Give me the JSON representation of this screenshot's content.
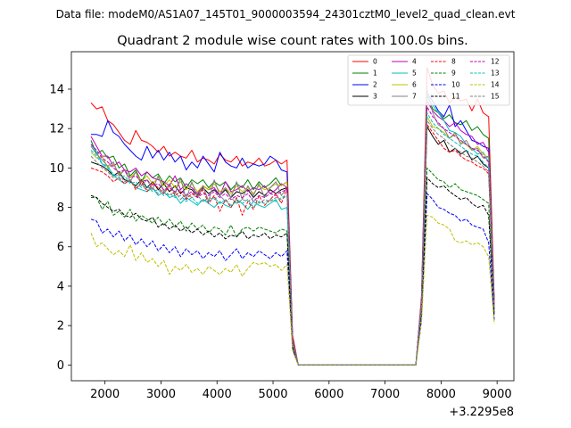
{
  "chart_data": {
    "type": "line",
    "suptitle": "Data file: modeM0/AS1A07_145T01_9000003594_24301cztM0_level2_quad_clean.evt",
    "title": "Quadrant 2 module wise count rates with 100.0s bins.",
    "xlabel": "",
    "ylabel": "",
    "x_offset_label": "+3.2295e8",
    "xlim": [
      1400,
      9300
    ],
    "ylim": [
      -0.8,
      15.9
    ],
    "x_ticks": [
      2000,
      3000,
      4000,
      5000,
      6000,
      7000,
      8000,
      9000
    ],
    "y_ticks": [
      0,
      2,
      4,
      6,
      8,
      10,
      12,
      14
    ],
    "x": [
      1750,
      1850,
      1950,
      2050,
      2150,
      2250,
      2350,
      2450,
      2550,
      2650,
      2750,
      2850,
      2950,
      3050,
      3150,
      3250,
      3350,
      3450,
      3550,
      3650,
      3750,
      3850,
      3950,
      4050,
      4150,
      4250,
      4350,
      4450,
      4550,
      4650,
      4750,
      4850,
      4950,
      5050,
      5150,
      5250,
      5350,
      5450,
      5550,
      7550,
      7650,
      7750,
      7850,
      7950,
      8050,
      8150,
      8250,
      8350,
      8450,
      8550,
      8650,
      8750,
      8850,
      8950
    ],
    "series": [
      {
        "name": "0",
        "color": "#ff0000",
        "dash": "solid",
        "values": [
          13.3,
          13.0,
          13.1,
          12.4,
          12.2,
          11.8,
          11.4,
          11.2,
          11.9,
          11.4,
          11.3,
          11.1,
          10.8,
          11.1,
          10.6,
          10.8,
          10.6,
          10.5,
          10.9,
          10.3,
          10.5,
          10.4,
          10.2,
          10.7,
          10.4,
          10.3,
          10.6,
          10.1,
          10.3,
          10.2,
          10.5,
          10.1,
          10.2,
          10.4,
          10.2,
          10.4,
          1.5,
          0.0,
          0.0,
          0.0,
          3.5,
          15.1,
          14.2,
          13.8,
          13.9,
          13.3,
          13.6,
          13.4,
          13.5,
          12.9,
          13.5,
          12.8,
          12.6,
          3.3
        ]
      },
      {
        "name": "1",
        "color": "#008000",
        "dash": "solid",
        "values": [
          11.4,
          10.7,
          10.9,
          10.5,
          10.6,
          10.0,
          10.2,
          9.6,
          9.9,
          9.3,
          9.8,
          9.5,
          9.7,
          9.2,
          9.6,
          9.3,
          9.5,
          9.0,
          9.4,
          9.2,
          9.4,
          9.0,
          9.3,
          9.1,
          9.3,
          8.9,
          9.2,
          9.0,
          9.4,
          8.9,
          9.3,
          9.0,
          9.2,
          9.5,
          9.1,
          9.3,
          1.2,
          0.0,
          0.0,
          0.0,
          3.3,
          13.7,
          13.0,
          12.8,
          12.5,
          12.7,
          12.3,
          12.2,
          12.4,
          11.9,
          12.1,
          11.7,
          11.5,
          3.0
        ]
      },
      {
        "name": "2",
        "color": "#0000ff",
        "dash": "solid",
        "values": [
          11.7,
          11.7,
          11.6,
          12.4,
          11.8,
          11.6,
          11.2,
          10.9,
          10.6,
          10.4,
          11.1,
          10.5,
          10.9,
          10.4,
          10.8,
          10.3,
          10.6,
          9.9,
          10.3,
          10.0,
          10.6,
          10.2,
          9.8,
          10.8,
          10.3,
          10.1,
          10.0,
          10.5,
          10.0,
          10.2,
          10.1,
          10.2,
          10.6,
          10.4,
          9.9,
          9.8,
          1.3,
          0.0,
          0.0,
          0.0,
          3.2,
          13.8,
          13.4,
          12.9,
          12.6,
          13.2,
          12.1,
          12.4,
          11.9,
          11.4,
          11.3,
          11.1,
          11.0,
          3.1
        ]
      },
      {
        "name": "3",
        "color": "#000000",
        "dash": "solid",
        "values": [
          10.3,
          10.2,
          10.1,
          9.9,
          9.6,
          9.8,
          9.4,
          9.3,
          9.1,
          9.4,
          9.0,
          9.3,
          8.9,
          9.2,
          8.8,
          9.1,
          8.7,
          9.0,
          8.9,
          8.6,
          9.0,
          8.7,
          8.9,
          8.6,
          8.9,
          8.5,
          8.8,
          8.7,
          8.9,
          8.5,
          8.8,
          8.6,
          8.9,
          8.7,
          8.9,
          9.0,
          1.2,
          0.0,
          0.0,
          0.0,
          3.1,
          12.1,
          11.6,
          11.2,
          11.4,
          10.8,
          11.0,
          10.7,
          10.9,
          10.4,
          10.6,
          10.2,
          10.0,
          2.8
        ]
      },
      {
        "name": "4",
        "color": "#bf00bf",
        "dash": "solid",
        "values": [
          11.6,
          11.1,
          10.6,
          10.6,
          10.1,
          10.3,
          9.9,
          9.8,
          10.0,
          9.6,
          9.8,
          9.5,
          9.4,
          9.3,
          9.1,
          9.6,
          8.9,
          9.2,
          9.0,
          8.7,
          9.1,
          8.9,
          9.0,
          8.6,
          9.3,
          8.8,
          8.9,
          9.1,
          8.8,
          9.0,
          8.9,
          9.1,
          8.7,
          8.9,
          9.2,
          9.0,
          1.2,
          0.0,
          0.0,
          0.0,
          3.3,
          13.4,
          12.9,
          12.6,
          12.4,
          12.1,
          12.3,
          11.9,
          11.7,
          11.6,
          11.2,
          11.3,
          10.8,
          3.0
        ]
      },
      {
        "name": "5",
        "color": "#00bfbf",
        "dash": "solid",
        "values": [
          11.2,
          10.8,
          10.2,
          10.1,
          9.6,
          9.4,
          9.2,
          9.4,
          9.0,
          8.9,
          8.8,
          9.0,
          8.6,
          8.8,
          8.5,
          8.6,
          8.2,
          8.5,
          8.3,
          8.1,
          8.4,
          8.2,
          8.0,
          8.3,
          8.1,
          8.0,
          8.4,
          8.2,
          7.9,
          8.3,
          8.1,
          8.0,
          8.2,
          8.4,
          7.9,
          8.0,
          1.1,
          0.0,
          0.0,
          0.0,
          3.0,
          13.6,
          13.2,
          12.8,
          12.4,
          11.9,
          11.8,
          11.6,
          11.2,
          11.0,
          10.7,
          10.8,
          10.3,
          2.9
        ]
      },
      {
        "name": "6",
        "color": "#bfbf00",
        "dash": "solid",
        "values": [
          10.8,
          10.5,
          10.6,
          10.0,
          10.2,
          9.7,
          9.9,
          9.5,
          9.8,
          9.3,
          9.6,
          9.2,
          9.5,
          9.1,
          9.4,
          9.0,
          9.3,
          8.9,
          9.2,
          8.8,
          9.1,
          8.9,
          9.2,
          8.8,
          9.0,
          8.7,
          9.1,
          8.8,
          9.0,
          8.7,
          9.1,
          8.9,
          9.0,
          9.2,
          9.1,
          9.3,
          1.2,
          0.0,
          0.0,
          0.0,
          3.2,
          12.6,
          12.1,
          12.0,
          11.8,
          11.5,
          11.7,
          11.3,
          11.2,
          10.9,
          11.1,
          10.7,
          10.5,
          2.9
        ]
      },
      {
        "name": "7",
        "color": "#808080",
        "dash": "solid",
        "values": [
          11.1,
          10.7,
          10.4,
          10.1,
          10.3,
          9.6,
          9.9,
          9.3,
          9.8,
          9.1,
          9.4,
          8.9,
          9.6,
          8.8,
          9.2,
          8.7,
          9.5,
          8.4,
          9.3,
          8.5,
          9.1,
          8.3,
          9.4,
          8.6,
          9.0,
          8.5,
          9.3,
          8.4,
          9.1,
          8.6,
          9.2,
          8.5,
          9.0,
          9.3,
          8.6,
          9.0,
          1.2,
          0.0,
          0.0,
          0.0,
          3.1,
          14.0,
          12.8,
          12.2,
          12.0,
          11.5,
          11.8,
          11.2,
          11.4,
          10.9,
          11.0,
          10.5,
          10.6,
          2.9
        ]
      },
      {
        "name": "8",
        "color": "#ff0000",
        "dash": "dashed",
        "values": [
          10.0,
          9.9,
          9.8,
          9.6,
          9.3,
          9.5,
          9.2,
          9.4,
          8.9,
          9.3,
          8.8,
          9.2,
          9.0,
          8.7,
          9.1,
          8.6,
          8.8,
          8.4,
          8.7,
          8.5,
          8.9,
          8.2,
          8.6,
          7.8,
          8.4,
          8.0,
          8.5,
          7.6,
          8.3,
          7.9,
          8.6,
          8.1,
          8.4,
          8.7,
          8.2,
          9.0,
          1.1,
          0.0,
          0.0,
          0.0,
          3.0,
          12.2,
          11.8,
          11.4,
          11.0,
          10.8,
          10.9,
          10.6,
          10.4,
          10.3,
          10.1,
          10.0,
          9.7,
          2.8
        ]
      },
      {
        "name": "9",
        "color": "#008000",
        "dash": "dashed",
        "values": [
          8.5,
          8.5,
          7.9,
          8.3,
          7.6,
          7.8,
          7.5,
          7.9,
          7.3,
          7.6,
          7.4,
          7.2,
          7.5,
          7.1,
          7.4,
          7.0,
          7.3,
          6.8,
          7.2,
          6.9,
          7.1,
          6.7,
          7.0,
          6.9,
          6.6,
          7.1,
          6.5,
          6.9,
          7.0,
          6.8,
          7.0,
          6.9,
          6.8,
          6.7,
          6.9,
          6.8,
          0.9,
          0.0,
          0.0,
          0.0,
          2.7,
          10.0,
          9.7,
          9.4,
          9.3,
          9.0,
          9.2,
          8.9,
          8.8,
          8.7,
          8.6,
          8.4,
          8.2,
          2.6
        ]
      },
      {
        "name": "10",
        "color": "#0000ff",
        "dash": "dashed",
        "values": [
          7.4,
          7.3,
          6.7,
          6.9,
          6.5,
          6.8,
          6.3,
          6.6,
          6.1,
          6.4,
          6.0,
          6.3,
          5.8,
          6.1,
          5.7,
          6.0,
          5.5,
          5.9,
          5.6,
          5.8,
          5.4,
          5.7,
          5.5,
          5.8,
          5.3,
          5.6,
          5.9,
          5.4,
          5.7,
          5.5,
          5.8,
          5.6,
          5.4,
          5.7,
          5.5,
          5.8,
          0.8,
          0.0,
          0.0,
          0.0,
          2.4,
          8.7,
          8.4,
          8.0,
          7.9,
          7.7,
          7.6,
          7.3,
          7.4,
          7.1,
          7.0,
          6.9,
          6.2,
          2.3
        ]
      },
      {
        "name": "11",
        "color": "#000000",
        "dash": "dashed",
        "values": [
          8.6,
          8.5,
          8.2,
          8.0,
          7.8,
          7.9,
          7.6,
          7.5,
          7.7,
          7.4,
          7.3,
          7.5,
          7.0,
          7.2,
          6.9,
          7.1,
          6.8,
          7.0,
          6.7,
          6.9,
          6.6,
          6.8,
          6.5,
          6.7,
          6.4,
          6.6,
          6.5,
          6.8,
          6.4,
          6.6,
          6.5,
          6.7,
          6.4,
          6.6,
          6.5,
          6.7,
          0.9,
          0.0,
          0.0,
          0.0,
          2.8,
          9.5,
          9.2,
          9.0,
          9.1,
          8.8,
          8.6,
          8.4,
          8.5,
          8.2,
          8.0,
          8.1,
          7.6,
          2.5
        ]
      },
      {
        "name": "12",
        "color": "#bf00bf",
        "dash": "dashed",
        "values": [
          11.2,
          10.9,
          10.5,
          10.3,
          10.0,
          9.8,
          9.9,
          9.5,
          9.6,
          9.3,
          9.4,
          9.1,
          9.2,
          8.9,
          9.0,
          8.8,
          8.9,
          8.6,
          8.8,
          8.5,
          8.7,
          8.6,
          8.8,
          8.5,
          8.7,
          8.4,
          8.6,
          8.5,
          8.7,
          8.3,
          8.6,
          8.5,
          8.7,
          8.6,
          8.8,
          8.9,
          1.1,
          0.0,
          0.0,
          0.0,
          3.1,
          13.1,
          12.6,
          12.3,
          12.0,
          11.8,
          11.6,
          11.4,
          11.2,
          11.0,
          10.9,
          10.6,
          10.3,
          2.9
        ]
      },
      {
        "name": "13",
        "color": "#00bfbf",
        "dash": "dashed",
        "values": [
          10.9,
          10.6,
          10.2,
          10.0,
          9.7,
          9.5,
          9.6,
          9.2,
          9.3,
          9.0,
          9.1,
          8.8,
          8.9,
          8.6,
          8.7,
          8.5,
          8.6,
          8.3,
          8.5,
          8.2,
          8.4,
          8.3,
          8.5,
          8.2,
          8.4,
          8.1,
          8.3,
          8.2,
          8.4,
          8.0,
          8.3,
          8.2,
          8.4,
          8.3,
          8.5,
          8.6,
          1.1,
          0.0,
          0.0,
          0.0,
          3.0,
          12.8,
          12.3,
          12.0,
          11.7,
          11.5,
          11.3,
          11.1,
          10.9,
          10.7,
          10.6,
          10.3,
          10.0,
          2.8
        ]
      },
      {
        "name": "14",
        "color": "#bfbf00",
        "dash": "dashed",
        "values": [
          6.7,
          6.0,
          6.2,
          5.9,
          5.6,
          5.8,
          5.5,
          6.1,
          5.3,
          5.7,
          5.2,
          5.4,
          5.0,
          5.3,
          4.6,
          5.0,
          4.8,
          5.1,
          4.7,
          4.9,
          4.6,
          5.0,
          4.8,
          4.6,
          4.9,
          4.7,
          5.1,
          4.5,
          4.9,
          5.2,
          5.1,
          5.2,
          5.0,
          5.1,
          4.8,
          5.1,
          0.7,
          0.0,
          0.0,
          0.0,
          2.1,
          7.6,
          7.5,
          7.2,
          7.1,
          6.9,
          6.3,
          6.2,
          6.3,
          6.1,
          6.2,
          6.0,
          5.5,
          2.1
        ]
      },
      {
        "name": "15",
        "color": "#808080",
        "dash": "dashed",
        "values": [
          10.6,
          10.3,
          10.0,
          9.8,
          9.5,
          9.7,
          9.3,
          9.4,
          9.0,
          9.2,
          8.9,
          9.0,
          8.7,
          8.9,
          8.6,
          8.8,
          8.4,
          8.7,
          8.5,
          8.6,
          8.3,
          8.5,
          8.4,
          8.6,
          8.3,
          8.5,
          8.2,
          8.4,
          8.3,
          8.5,
          8.2,
          8.4,
          8.3,
          8.5,
          8.4,
          8.6,
          1.1,
          0.0,
          0.0,
          0.0,
          3.0,
          12.4,
          12.0,
          11.7,
          11.5,
          11.2,
          11.0,
          10.8,
          10.6,
          10.5,
          10.3,
          10.1,
          9.8,
          2.8
        ]
      }
    ]
  }
}
